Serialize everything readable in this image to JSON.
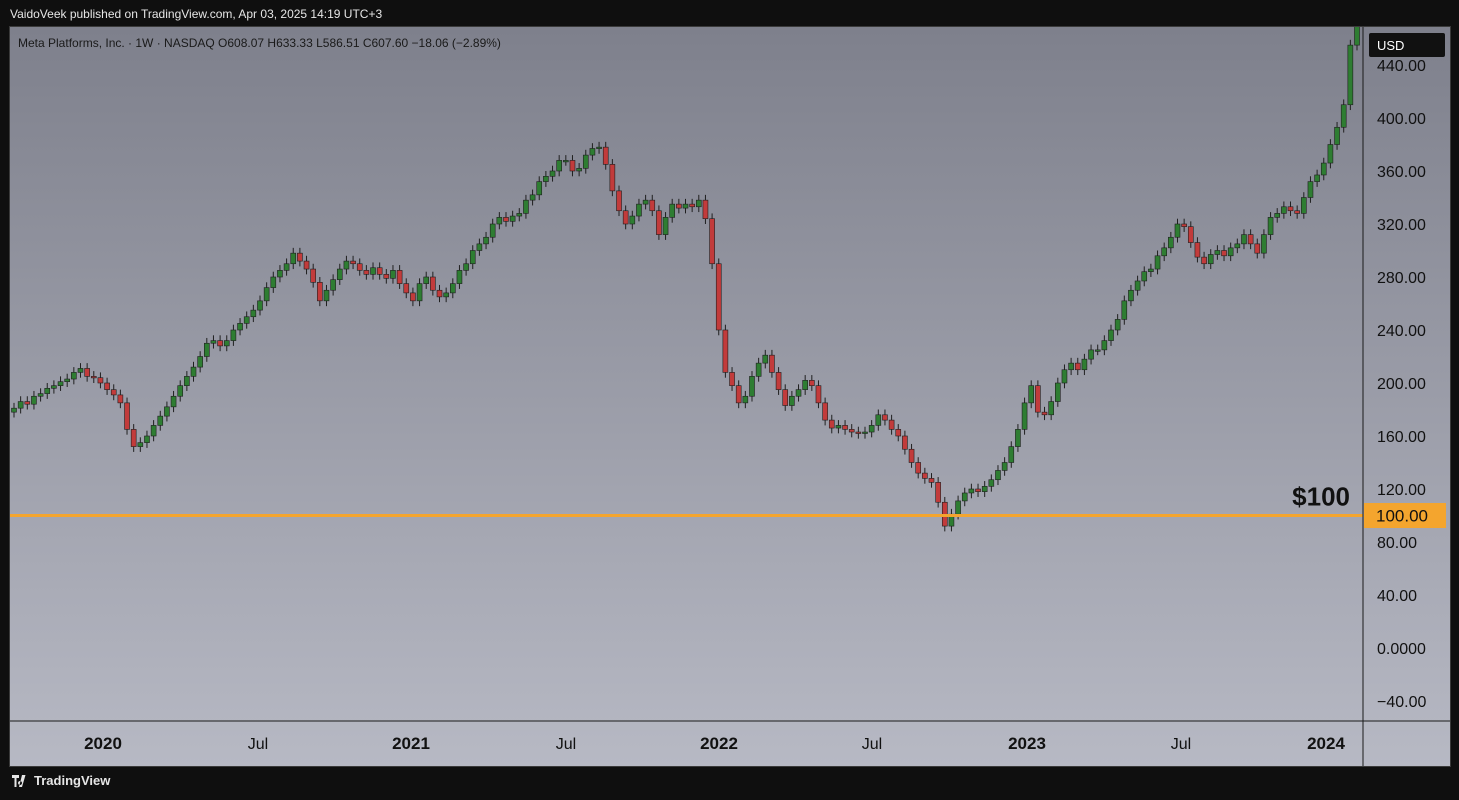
{
  "header": {
    "published": "VaidoVeek published on TradingView.com, Apr 03, 2025 14:19 UTC+3"
  },
  "footer": {
    "brand": "TradingView"
  },
  "legend": {
    "text": "Meta Platforms, Inc. · 1W · NASDAQ  O608.07  H633.33  L586.51  C607.60  −18.06 (−2.89%)"
  },
  "colors": {
    "bg_top": "#7e808c",
    "bg_bottom": "#b7b9c4",
    "up": "#2e7d32",
    "down": "#c23b3b",
    "wick": "#1f1f1f",
    "support_line": "#f4a52e",
    "currency_badge": "#111111"
  },
  "chart_data": {
    "type": "candlestick",
    "timeframe": "1W",
    "ylim": [
      -40,
      460
    ],
    "xlim": [
      "2019-12",
      "2024-01"
    ],
    "currency": "USD",
    "y_ticks": [
      "440.00",
      "400.00",
      "360.00",
      "320.00",
      "280.00",
      "240.00",
      "200.00",
      "160.00",
      "120.00",
      "80.00",
      "40.00",
      "0.0000",
      "−40.00"
    ],
    "x_ticks": [
      {
        "label": "2020",
        "major": true
      },
      {
        "label": "Jul",
        "major": false
      },
      {
        "label": "2021",
        "major": true
      },
      {
        "label": "Jul",
        "major": false
      },
      {
        "label": "2022",
        "major": true
      },
      {
        "label": "Jul",
        "major": false
      },
      {
        "label": "2023",
        "major": true
      },
      {
        "label": "Jul",
        "major": false
      },
      {
        "label": "2024",
        "major": true
      }
    ],
    "support_level": {
      "value": 100,
      "label": "$100",
      "price_label": "100.00"
    },
    "close_path": [
      181,
      186,
      184,
      190,
      192,
      196,
      198,
      201,
      203,
      208,
      211,
      205,
      204,
      200,
      195,
      191,
      185,
      165,
      152,
      155,
      160,
      168,
      175,
      182,
      190,
      198,
      205,
      212,
      220,
      230,
      232,
      228,
      232,
      240,
      245,
      250,
      255,
      262,
      272,
      280,
      285,
      290,
      298,
      292,
      286,
      276,
      262,
      270,
      278,
      286,
      292,
      290,
      285,
      282,
      287,
      282,
      279,
      285,
      275,
      268,
      262,
      275,
      280,
      270,
      265,
      268,
      275,
      285,
      290,
      300,
      305,
      310,
      320,
      325,
      322,
      326,
      328,
      338,
      342,
      352,
      356,
      360,
      368,
      368,
      360,
      362,
      372,
      377,
      378,
      365,
      345,
      330,
      320,
      326,
      335,
      338,
      330,
      312,
      325,
      335,
      332,
      335,
      333,
      338,
      324,
      290,
      240,
      208,
      198,
      185,
      190,
      205,
      215,
      221,
      208,
      195,
      183,
      190,
      195,
      202,
      198,
      185,
      172,
      166,
      168,
      165,
      163,
      162,
      163,
      168,
      176,
      172,
      165,
      160,
      150,
      140,
      132,
      128,
      125,
      110,
      92,
      101,
      111,
      117,
      120,
      118,
      122,
      127,
      134,
      140,
      152,
      165,
      185,
      198,
      178,
      176,
      186,
      200,
      210,
      215,
      210,
      218,
      225,
      225,
      232,
      240,
      248,
      262,
      270,
      277,
      284,
      286,
      296,
      302,
      310,
      320,
      318,
      306,
      295,
      290,
      297,
      300,
      296,
      302,
      305,
      312,
      305,
      298,
      312,
      325,
      328,
      333,
      330,
      328,
      340,
      352,
      357,
      366,
      380,
      393,
      410,
      455,
      610
    ],
    "hl_spread": 4,
    "body_pct_change": 1.6
  }
}
